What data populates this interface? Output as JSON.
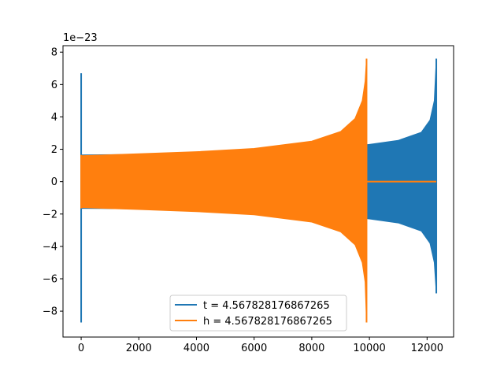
{
  "chart_data": {
    "type": "line",
    "title": "",
    "xlabel": "",
    "ylabel": "",
    "offset_label": "1e−23",
    "xlim": [
      -630,
      12920
    ],
    "ylim": [
      -9.6,
      8.4
    ],
    "x_ticks": [
      0,
      2000,
      4000,
      6000,
      8000,
      10000,
      12000
    ],
    "x_tick_labels": [
      "0",
      "2000",
      "4000",
      "6000",
      "8000",
      "10000",
      "12000"
    ],
    "y_ticks": [
      -8,
      -6,
      -4,
      -2,
      0,
      2,
      4,
      6,
      8
    ],
    "y_tick_labels": [
      "−8",
      "−6",
      "−4",
      "−2",
      "0",
      "2",
      "4",
      "6",
      "8"
    ],
    "grid": false,
    "legend_position": "bottom-center",
    "series": [
      {
        "name": "t = 4.567828176867265",
        "color": "#1f77b4",
        "style": "oscillating-band",
        "spike_start": {
          "x": 0,
          "ymax": 6.7,
          "ymin": -8.7
        },
        "envelope_x": [
          0,
          2000,
          4000,
          6000,
          8000,
          10000,
          11000,
          11800,
          12100,
          12250,
          12320
        ],
        "envelope_y": [
          1.65,
          1.68,
          1.71,
          1.78,
          1.95,
          2.3,
          2.55,
          3.05,
          3.8,
          5.0,
          7.6
        ],
        "end_min": -6.9,
        "after_end_y": 0
      },
      {
        "name": "h = 4.567828176867265",
        "color": "#ff7f0e",
        "style": "oscillating-band",
        "spike_start": {
          "x": 0,
          "ymax": 1.65,
          "ymin": -1.65
        },
        "envelope_x": [
          0,
          2000,
          4000,
          6000,
          8000,
          9000,
          9500,
          9750,
          9850,
          9900
        ],
        "envelope_y": [
          1.6,
          1.72,
          1.85,
          2.05,
          2.5,
          3.1,
          3.9,
          5.0,
          6.2,
          7.6
        ],
        "end_min": -8.7,
        "after_end_y": 0,
        "after_end_x": 12320
      }
    ]
  }
}
